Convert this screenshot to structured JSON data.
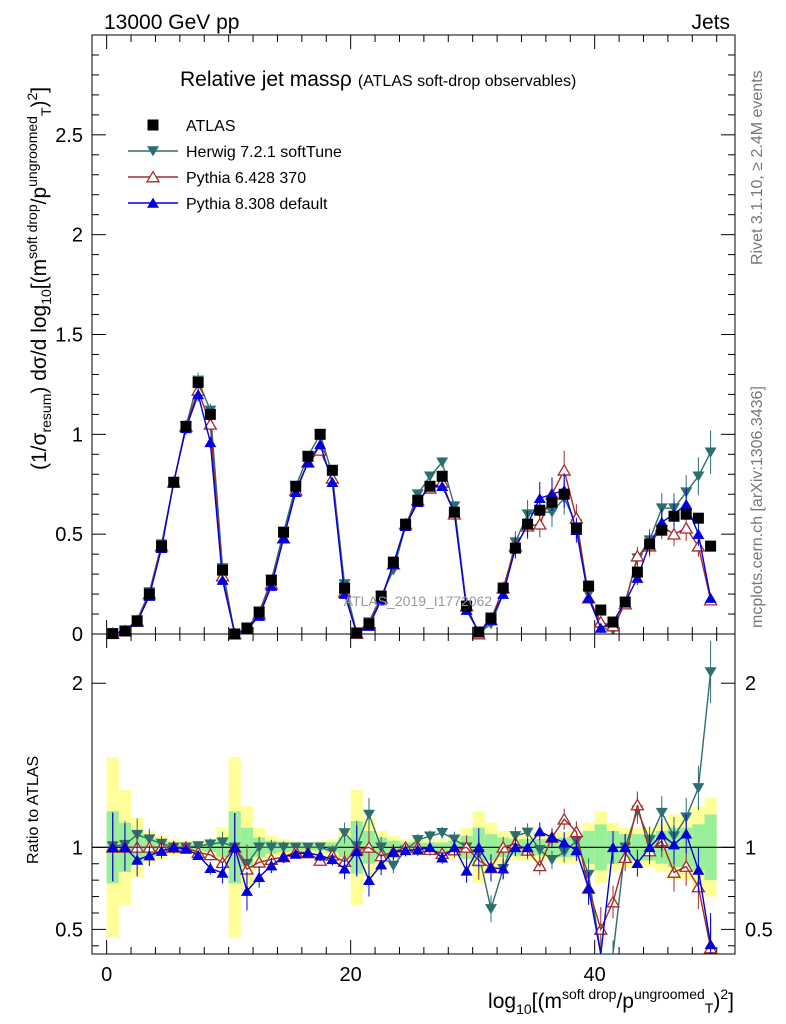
{
  "header": {
    "left": "13000 GeV pp",
    "right": "Jets",
    "side_rivet": "Rivet 3.1.10, ≥ 2.4M events",
    "side_mcplots": "mcplots.cern.ch [arXiv:1306.3436]",
    "watermark": "ATLAS_2019_I1772062"
  },
  "chart_data": {
    "type": "line",
    "title": "Relative jet massρ",
    "subtitle": "(ATLAS soft-drop observables)",
    "ylabel_main": "(1/σresum) dσ/d log10[(m soft drop/pT ungroomed)2]",
    "ylabel_main_parts": {
      "a": "(1/σ",
      "a_sub": "resum",
      "b": ") dσ/d log",
      "b_sub": "10",
      "c": "[(m",
      "c_sup": "soft drop",
      "d": "/p",
      "d_sup": "ungroomed",
      "d_sub": "T",
      "e": ")",
      "e_sup": "2",
      "f": "]"
    },
    "ylabel_ratio": "Ratio to ATLAS",
    "xlabel_parts": {
      "a": "log",
      "a_sub": "10",
      "b": "[(m",
      "b_sup": "soft drop",
      "c": "/p",
      "c_sup": "ungroomed",
      "c_sub": "T",
      "d": ")",
      "d_sup": "2",
      "e": "]"
    },
    "xlim": [
      -1.2,
      51.5
    ],
    "ylim_main": [
      0,
      3.0
    ],
    "ylim_ratio": [
      0.35,
      2.3
    ],
    "xticks": [
      0,
      20,
      40
    ],
    "xtick_labels": [
      "0",
      "20",
      "40"
    ],
    "yticks_main": [
      0,
      0.5,
      1,
      1.5,
      2,
      2.5
    ],
    "ytick_labels_main": [
      "0",
      "0.5",
      "1",
      "1.5",
      "2",
      "2.5"
    ],
    "yticks_ratio": [
      0.5,
      1,
      2
    ],
    "ytick_labels_ratio": [
      "0.5",
      "1",
      "2"
    ],
    "legend_position": "top-left",
    "x": [
      0.5,
      1.5,
      2.5,
      3.5,
      4.5,
      5.5,
      6.5,
      7.5,
      8.5,
      9.5,
      10.5,
      11.5,
      12.5,
      13.5,
      14.5,
      15.5,
      16.5,
      17.5,
      18.5,
      19.5,
      20.5,
      21.5,
      22.5,
      23.5,
      24.5,
      25.5,
      26.5,
      27.5,
      28.5,
      29.5,
      30.5,
      31.5,
      32.5,
      33.5,
      34.5,
      35.5,
      36.5,
      37.5,
      38.5,
      39.5,
      40.5,
      41.5,
      42.5,
      43.5,
      44.5,
      45.5,
      46.5,
      47.5,
      48.5,
      49.5
    ],
    "band_inner": [
      0.22,
      0.15,
      0.1,
      0.06,
      0.04,
      0.03,
      0.02,
      0.02,
      0.03,
      0.06,
      0.22,
      0.12,
      0.06,
      0.04,
      0.03,
      0.02,
      0.02,
      0.02,
      0.03,
      0.06,
      0.16,
      0.1,
      0.06,
      0.04,
      0.03,
      0.03,
      0.03,
      0.03,
      0.04,
      0.07,
      0.12,
      0.08,
      0.06,
      0.05,
      0.05,
      0.05,
      0.05,
      0.06,
      0.06,
      0.1,
      0.14,
      0.1,
      0.08,
      0.08,
      0.08,
      0.1,
      0.12,
      0.12,
      0.14,
      0.2
    ],
    "band_outer": [
      0.55,
      0.35,
      0.18,
      0.1,
      0.07,
      0.05,
      0.04,
      0.04,
      0.05,
      0.12,
      0.55,
      0.25,
      0.12,
      0.07,
      0.05,
      0.04,
      0.03,
      0.04,
      0.05,
      0.12,
      0.35,
      0.18,
      0.1,
      0.07,
      0.05,
      0.05,
      0.05,
      0.05,
      0.07,
      0.12,
      0.22,
      0.15,
      0.1,
      0.08,
      0.08,
      0.08,
      0.08,
      0.1,
      0.1,
      0.15,
      0.22,
      0.15,
      0.12,
      0.12,
      0.12,
      0.15,
      0.2,
      0.2,
      0.25,
      0.3
    ],
    "series": [
      {
        "name": "ATLAS",
        "color": "#000000",
        "marker": "square",
        "values": [
          0.002,
          0.015,
          0.065,
          0.2,
          0.44,
          0.76,
          1.04,
          1.26,
          1.1,
          0.32,
          0.0,
          0.03,
          0.11,
          0.27,
          0.51,
          0.74,
          0.89,
          1.0,
          0.82,
          0.23,
          0.005,
          0.05,
          0.19,
          0.36,
          0.55,
          0.67,
          0.74,
          0.79,
          0.61,
          0.14,
          0.01,
          0.08,
          0.23,
          0.43,
          0.55,
          0.62,
          0.66,
          0.7,
          0.53,
          0.24,
          0.12,
          0.06,
          0.16,
          0.31,
          0.45,
          0.52,
          0.59,
          0.6,
          0.58,
          0.44
        ]
      },
      {
        "name": "Herwig 7.2.1 softTune",
        "color": "#2d6e6e",
        "marker": "triangle-down",
        "values": [
          0.003,
          0.017,
          0.07,
          0.21,
          0.45,
          0.76,
          1.04,
          1.27,
          1.12,
          0.33,
          0.0,
          0.027,
          0.11,
          0.27,
          0.51,
          0.74,
          0.89,
          1.0,
          0.8,
          0.25,
          0.006,
          0.06,
          0.19,
          0.32,
          0.54,
          0.7,
          0.79,
          0.86,
          0.64,
          0.14,
          0.005,
          0.05,
          0.2,
          0.46,
          0.6,
          0.61,
          0.61,
          0.68,
          0.55,
          0.2,
          0.03,
          0.02,
          0.16,
          0.38,
          0.47,
          0.63,
          0.63,
          0.71,
          0.79,
          0.91
        ]
      },
      {
        "name": "Pythia 6.428 370",
        "color": "#a52a2a",
        "marker": "triangle-up-open",
        "values": [
          0.002,
          0.015,
          0.065,
          0.2,
          0.44,
          0.76,
          1.04,
          1.22,
          1.05,
          0.29,
          0.0,
          0.026,
          0.1,
          0.25,
          0.48,
          0.72,
          0.86,
          0.92,
          0.78,
          0.21,
          0.003,
          0.05,
          0.18,
          0.35,
          0.55,
          0.67,
          0.73,
          0.76,
          0.6,
          0.14,
          0.0,
          0.07,
          0.23,
          0.44,
          0.54,
          0.55,
          0.7,
          0.82,
          0.58,
          0.18,
          0.06,
          0.04,
          0.15,
          0.39,
          0.44,
          0.54,
          0.5,
          0.53,
          0.44,
          0.17
        ]
      },
      {
        "name": "Pythia 8.308 default",
        "color": "#0000dd",
        "marker": "triangle-up",
        "values": [
          0.002,
          0.015,
          0.06,
          0.19,
          0.43,
          0.76,
          1.03,
          1.2,
          0.96,
          0.27,
          0.0,
          0.022,
          0.09,
          0.24,
          0.48,
          0.71,
          0.86,
          0.95,
          0.76,
          0.2,
          0.002,
          0.04,
          0.17,
          0.35,
          0.54,
          0.66,
          0.74,
          0.74,
          0.61,
          0.12,
          0.01,
          0.07,
          0.2,
          0.43,
          0.55,
          0.68,
          0.7,
          0.72,
          0.52,
          0.18,
          0.03,
          0.06,
          0.16,
          0.28,
          0.45,
          0.56,
          0.6,
          0.65,
          0.5,
          0.18
        ]
      }
    ]
  }
}
